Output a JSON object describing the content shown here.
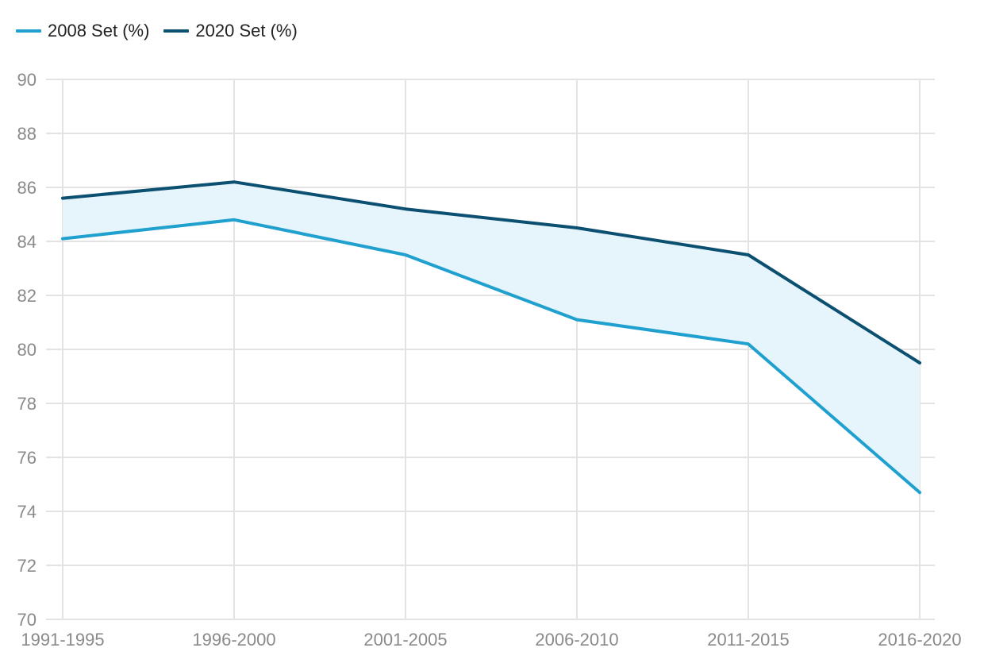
{
  "chart_data": {
    "type": "line",
    "categories": [
      "1991-1995",
      "1996-2000",
      "2001-2005",
      "2006-2010",
      "2011-2015",
      "2016-2020"
    ],
    "series": [
      {
        "name": "2008 Set (%)",
        "color": "#1fa0cf",
        "values": [
          84.1,
          84.8,
          83.5,
          81.1,
          80.2,
          74.7
        ]
      },
      {
        "name": "2020 Set (%)",
        "color": "#0b4f71",
        "values": [
          85.6,
          86.2,
          85.2,
          84.5,
          83.5,
          79.5
        ]
      }
    ],
    "band_fill": "#e6f4fb",
    "ylim": [
      70,
      90
    ],
    "yticks": [
      70,
      72,
      74,
      76,
      78,
      80,
      82,
      84,
      86,
      88,
      90
    ],
    "title": "",
    "xlabel": "",
    "ylabel": "",
    "grid": true,
    "legend_position": "top-left"
  }
}
